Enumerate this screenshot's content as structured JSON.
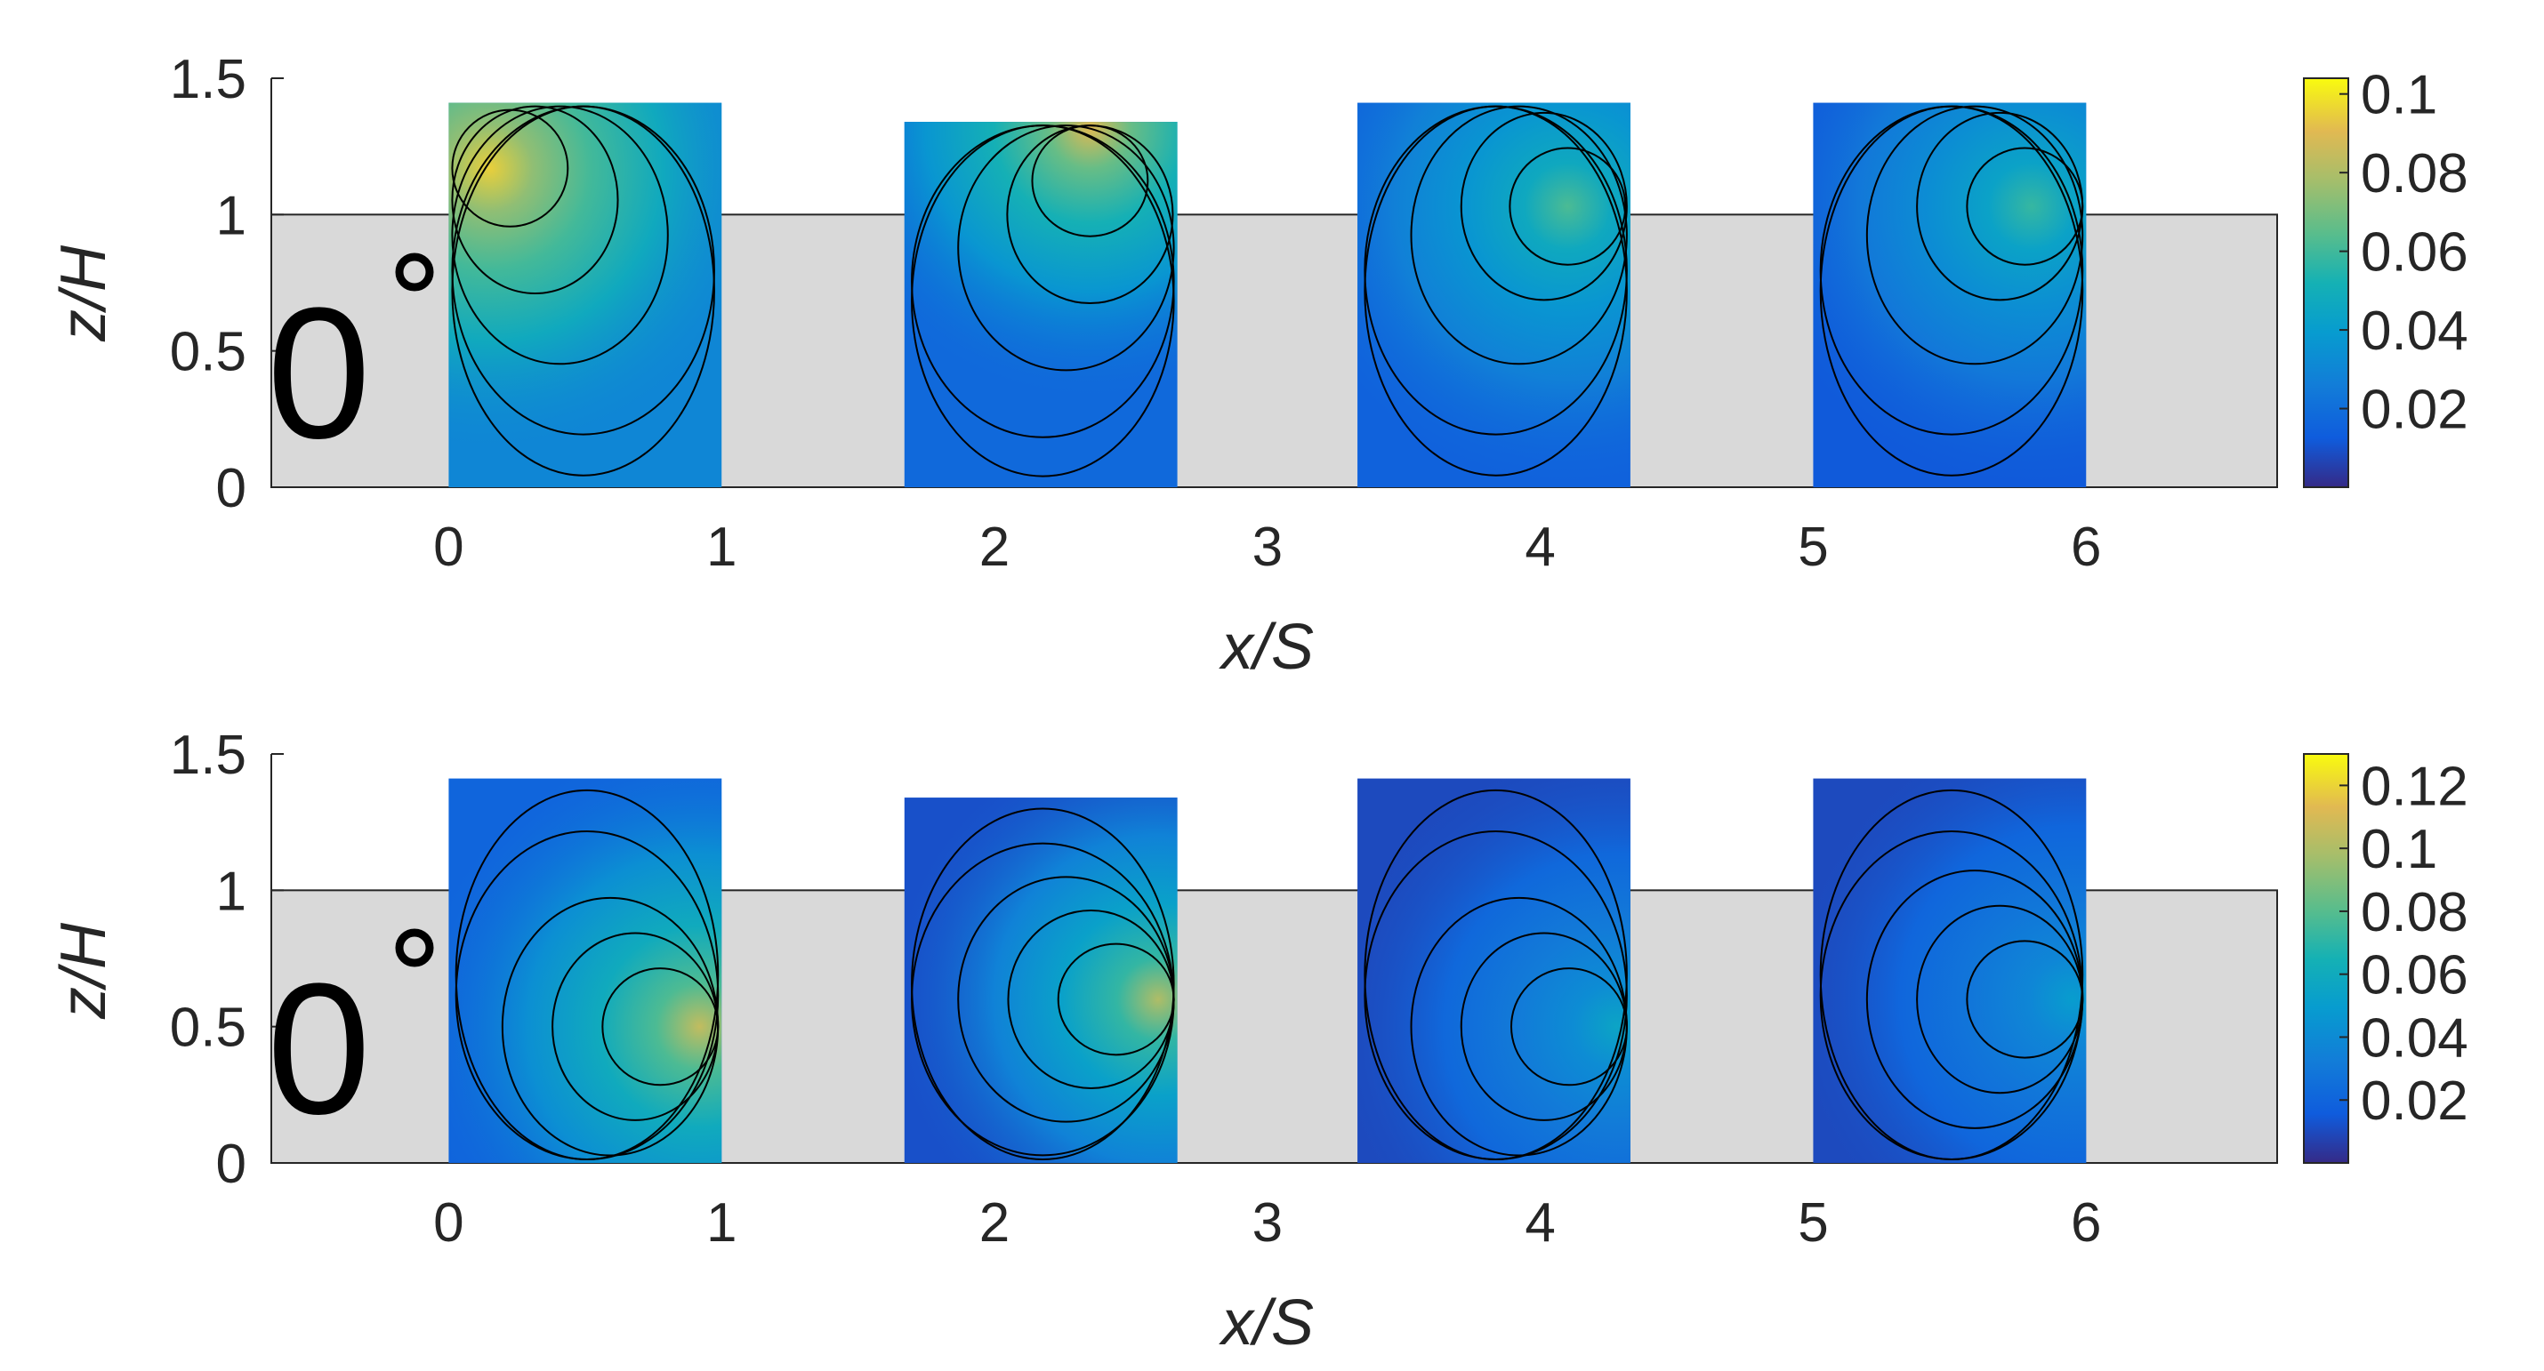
{
  "chart_data": [
    {
      "type": "heatmap",
      "panel": "top",
      "xlabel": "x/S",
      "ylabel": "z/H",
      "xticks": [
        "0",
        "1",
        "2",
        "3",
        "4",
        "5",
        "6"
      ],
      "yticks": [
        "0",
        "0.5",
        "1",
        "1.5"
      ],
      "xlim": [
        -0.65,
        6.7
      ],
      "ylim": [
        0,
        1.5
      ],
      "annotation": "0",
      "obstacle_height": 1.0,
      "colorbar": {
        "ticks": [
          "0.02",
          "0.04",
          "0.06",
          "0.08",
          "0.1"
        ],
        "min": 0.0,
        "max": 0.104
      },
      "regions": [
        {
          "x0": 0.0,
          "x1": 1.0,
          "top": 1.41,
          "peak": 0.095,
          "peak_x": 0.15,
          "peak_z": 1.17,
          "base": 0.03
        },
        {
          "x0": 1.67,
          "x1": 2.67,
          "top": 1.34,
          "peak": 0.09,
          "peak_x": 2.35,
          "peak_z": 1.32,
          "base": 0.018
        },
        {
          "x0": 3.33,
          "x1": 4.33,
          "top": 1.41,
          "peak": 0.062,
          "peak_x": 4.1,
          "peak_z": 1.03,
          "base": 0.015
        },
        {
          "x0": 5.0,
          "x1": 6.0,
          "top": 1.41,
          "peak": 0.058,
          "peak_x": 5.8,
          "peak_z": 1.03,
          "base": 0.012
        }
      ]
    },
    {
      "type": "heatmap",
      "panel": "bottom",
      "xlabel": "x/S",
      "ylabel": "z/H",
      "xticks": [
        "0",
        "1",
        "2",
        "3",
        "4",
        "5",
        "6"
      ],
      "yticks": [
        "0",
        "0.5",
        "1",
        "1.5"
      ],
      "xlim": [
        -0.65,
        6.7
      ],
      "ylim": [
        0,
        1.5
      ],
      "annotation": "0",
      "obstacle_height": 1.0,
      "colorbar": {
        "ticks": [
          "0.02",
          "0.04",
          "0.06",
          "0.08",
          "0.1",
          "0.12"
        ],
        "min": 0.0,
        "max": 0.13
      },
      "regions": [
        {
          "x0": 0.0,
          "x1": 1.0,
          "top": 1.41,
          "peak": 0.105,
          "peak_x": 0.92,
          "peak_z": 0.5,
          "base": 0.02
        },
        {
          "x0": 1.67,
          "x1": 2.67,
          "top": 1.34,
          "peak": 0.1,
          "peak_x": 2.6,
          "peak_z": 0.6,
          "base": 0.012
        },
        {
          "x0": 3.33,
          "x1": 4.33,
          "top": 1.41,
          "peak": 0.055,
          "peak_x": 4.28,
          "peak_z": 0.5,
          "base": 0.01
        },
        {
          "x0": 5.0,
          "x1": 6.0,
          "top": 1.41,
          "peak": 0.05,
          "peak_x": 5.95,
          "peak_z": 0.6,
          "base": 0.01
        }
      ]
    }
  ]
}
